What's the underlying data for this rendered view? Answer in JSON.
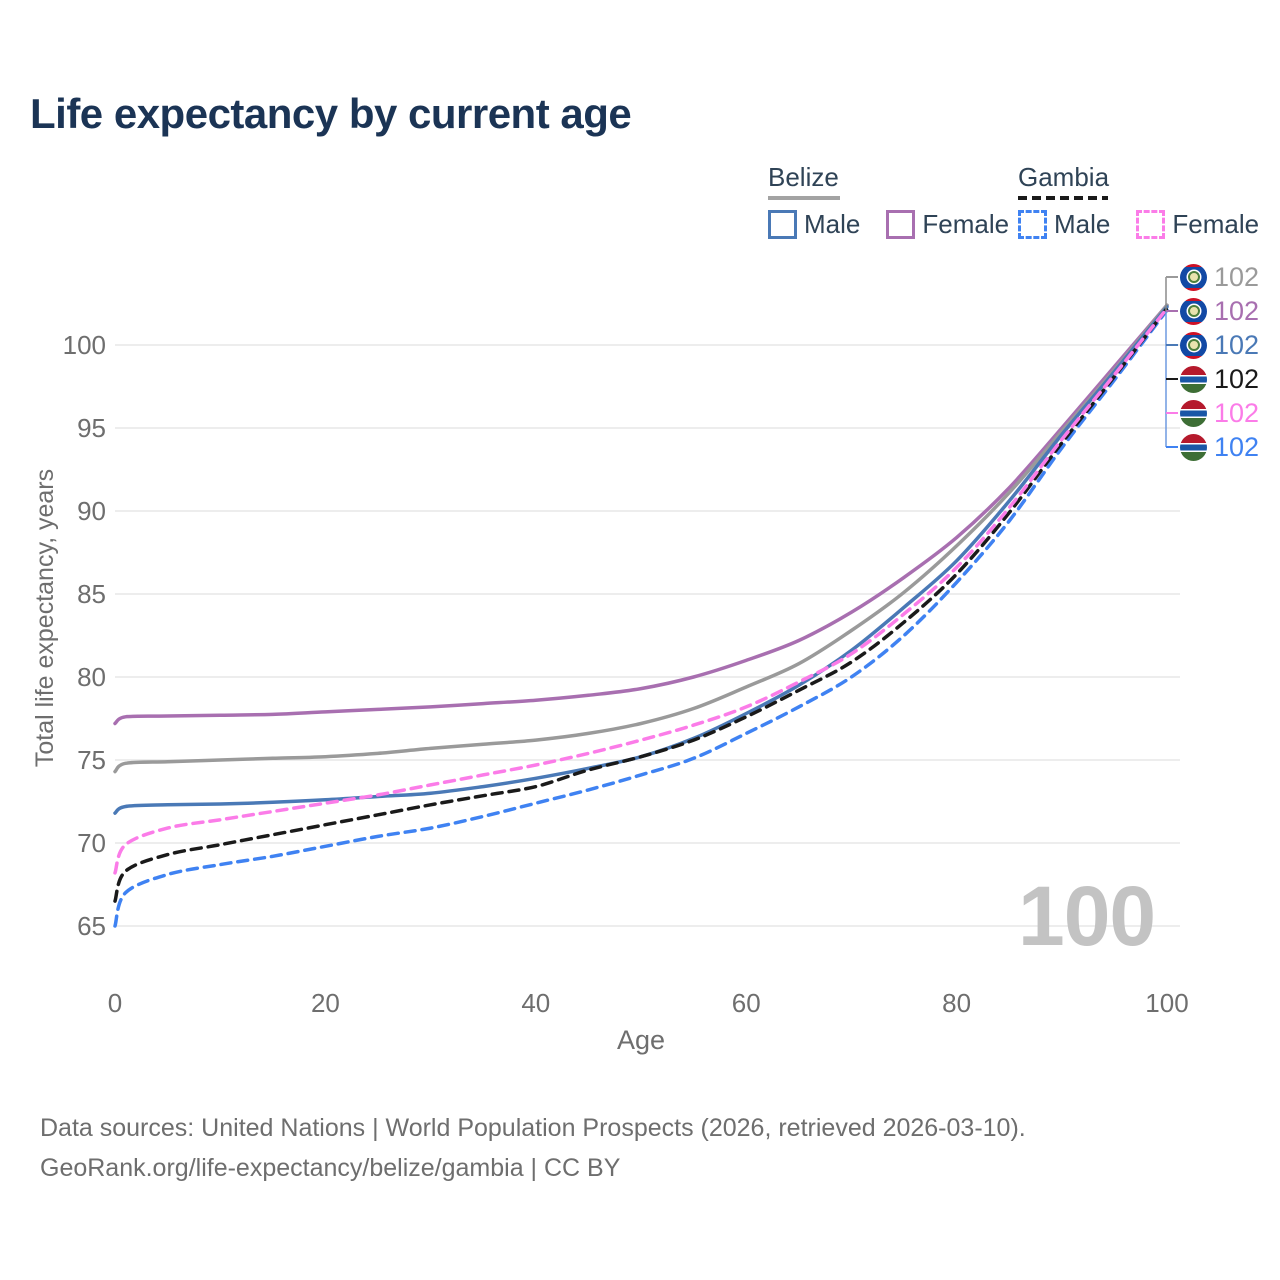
{
  "title": "Life expectancy by current age",
  "legend": {
    "belize": {
      "label": "Belize",
      "male": "Male",
      "female": "Female"
    },
    "gambia": {
      "label": "Gambia",
      "male": "Male",
      "female": "Female"
    }
  },
  "colors": {
    "belize_all": "#9a9a9a",
    "belize_female": "#a86fb0",
    "belize_male": "#4a79b6",
    "gambia_all": "#1a1a1a",
    "gambia_female": "#fb7ce8",
    "gambia_male": "#3f82f2",
    "title": "#1b3455",
    "axis_text": "#6e6e6e",
    "grid": "#e7e7e7",
    "watermark": "#c3c3c3"
  },
  "watermark": "100",
  "footer": {
    "line1": "Data sources: United Nations | World Population Prospects (2026, retrieved 2026-03-10).",
    "line2": "GeoRank.org/life-expectancy/belize/gambia | CC BY"
  },
  "chart_data": {
    "type": "line",
    "title": "Life expectancy by current age",
    "xlabel": "Age",
    "ylabel": "Total life expectancy, years",
    "x_ticks": [
      0,
      20,
      40,
      60,
      80,
      100
    ],
    "y_ticks": [
      65,
      70,
      75,
      80,
      85,
      90,
      95,
      100
    ],
    "xlim": [
      0,
      100
    ],
    "ylim": [
      64,
      103
    ],
    "grid": "horizontal",
    "legend_position": "top-right",
    "ages": [
      0,
      1,
      5,
      10,
      15,
      20,
      25,
      30,
      35,
      40,
      45,
      50,
      55,
      60,
      65,
      70,
      75,
      80,
      85,
      90,
      95,
      100
    ],
    "series": [
      {
        "name": "Belize Female",
        "country": "Belize",
        "sex": "Female",
        "style": "solid",
        "color": "#a86fb0",
        "values": [
          77.2,
          77.6,
          77.65,
          77.7,
          77.75,
          77.9,
          78.05,
          78.2,
          78.4,
          78.6,
          78.9,
          79.3,
          80.0,
          81.0,
          82.2,
          83.9,
          86.0,
          88.4,
          91.4,
          95.0,
          98.7,
          102.4
        ]
      },
      {
        "name": "Belize All",
        "country": "Belize",
        "sex": "All",
        "style": "solid",
        "color": "#9a9a9a",
        "values": [
          74.3,
          74.8,
          74.9,
          75.0,
          75.1,
          75.2,
          75.4,
          75.7,
          75.95,
          76.2,
          76.6,
          77.2,
          78.1,
          79.4,
          80.8,
          82.8,
          85.1,
          87.9,
          91.1,
          94.8,
          98.5,
          102.4
        ]
      },
      {
        "name": "Belize Male",
        "country": "Belize",
        "sex": "Male",
        "style": "solid",
        "color": "#4a79b6",
        "values": [
          71.8,
          72.2,
          72.3,
          72.35,
          72.45,
          72.6,
          72.8,
          73.0,
          73.4,
          73.9,
          74.5,
          75.2,
          76.3,
          77.8,
          79.5,
          81.6,
          84.2,
          87.0,
          90.6,
          94.6,
          98.4,
          102.3
        ]
      },
      {
        "name": "Gambia Male",
        "country": "Gambia",
        "sex": "Male",
        "style": "dashed",
        "color": "#3f82f2",
        "values": [
          65.0,
          67.0,
          68.1,
          68.7,
          69.2,
          69.8,
          70.4,
          70.9,
          71.6,
          72.4,
          73.2,
          74.1,
          75.1,
          76.6,
          78.2,
          80.0,
          82.5,
          85.7,
          89.4,
          93.8,
          97.9,
          102.1
        ]
      },
      {
        "name": "Gambia All",
        "country": "Gambia",
        "sex": "All",
        "style": "dashed",
        "color": "#1a1a1a",
        "values": [
          66.5,
          68.3,
          69.3,
          69.9,
          70.5,
          71.1,
          71.7,
          72.3,
          72.85,
          73.4,
          74.4,
          75.2,
          76.2,
          77.6,
          79.2,
          80.9,
          83.3,
          86.2,
          89.9,
          94.1,
          98.1,
          102.2
        ]
      },
      {
        "name": "Gambia Female",
        "country": "Gambia",
        "sex": "Female",
        "style": "dashed",
        "color": "#fb7ce8",
        "values": [
          68.2,
          69.9,
          70.9,
          71.4,
          71.9,
          72.4,
          72.9,
          73.5,
          74.1,
          74.7,
          75.4,
          76.2,
          77.1,
          78.2,
          79.7,
          81.4,
          83.8,
          86.6,
          90.2,
          94.3,
          98.2,
          102.2
        ]
      }
    ],
    "end_labels": [
      {
        "flag": "belize",
        "value": "102",
        "color": "#9a9a9a",
        "series": "Belize All"
      },
      {
        "flag": "belize",
        "value": "102",
        "color": "#a86fb0",
        "series": "Belize Female"
      },
      {
        "flag": "belize",
        "value": "102",
        "color": "#4a79b6",
        "series": "Belize Male"
      },
      {
        "flag": "gambia",
        "value": "102",
        "color": "#1a1a1a",
        "series": "Gambia All"
      },
      {
        "flag": "gambia",
        "value": "102",
        "color": "#fb7ce8",
        "series": "Gambia Female"
      },
      {
        "flag": "gambia",
        "value": "102",
        "color": "#3f82f2",
        "series": "Gambia Male"
      }
    ]
  }
}
